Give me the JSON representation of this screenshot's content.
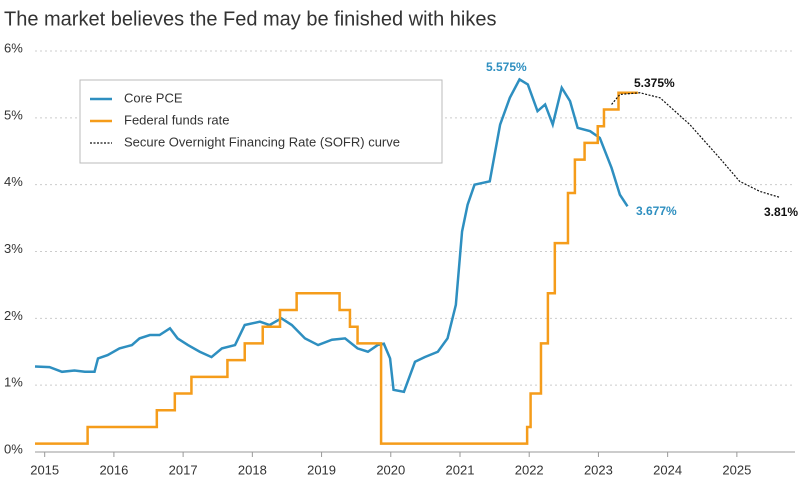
{
  "chart_data": {
    "type": "line",
    "title": "The market believes the Fed may be finished with hikes",
    "xlim": [
      2014.86,
      2025.84
    ],
    "xticks": [
      2015,
      2016,
      2017,
      2018,
      2019,
      2020,
      2021,
      2022,
      2023,
      2024,
      2025
    ],
    "ylim": [
      0,
      6
    ],
    "yticks": [
      {
        "value": 0,
        "label": "0%"
      },
      {
        "value": 1,
        "label": "1%"
      },
      {
        "value": 2,
        "label": "2%"
      },
      {
        "value": 3,
        "label": "3%"
      },
      {
        "value": 4,
        "label": "4%"
      },
      {
        "value": 5,
        "label": "5%"
      },
      {
        "value": 6,
        "label": "6%"
      }
    ],
    "grid": true,
    "legend": "top-left",
    "series": [
      {
        "name": "Core PCE",
        "color": "#2e8fc0",
        "style": "solid",
        "step": false,
        "x": [
          2014.86,
          2015.07,
          2015.25,
          2015.43,
          2015.58,
          2015.72,
          2015.77,
          2015.91,
          2016.08,
          2016.26,
          2016.37,
          2016.52,
          2016.66,
          2016.81,
          2016.92,
          2017.07,
          2017.24,
          2017.41,
          2017.56,
          2017.75,
          2017.89,
          2018.11,
          2018.25,
          2018.42,
          2018.57,
          2018.76,
          2018.95,
          2019.15,
          2019.34,
          2019.52,
          2019.67,
          2019.81,
          2019.9,
          2019.99,
          2020.04,
          2020.19,
          2020.35,
          2020.49,
          2020.68,
          2020.82,
          2020.94,
          2021.03,
          2021.11,
          2021.21,
          2021.43,
          2021.58,
          2021.72,
          2021.86,
          2021.98,
          2022.12,
          2022.23,
          2022.34,
          2022.47,
          2022.59,
          2022.7,
          2022.88,
          2023.02,
          2023.19,
          2023.31,
          2023.42
        ],
        "values": [
          1.28,
          1.27,
          1.2,
          1.22,
          1.2,
          1.2,
          1.4,
          1.45,
          1.55,
          1.6,
          1.7,
          1.75,
          1.75,
          1.85,
          1.7,
          1.6,
          1.5,
          1.42,
          1.55,
          1.6,
          1.9,
          1.95,
          1.9,
          2.0,
          1.9,
          1.7,
          1.6,
          1.68,
          1.7,
          1.55,
          1.5,
          1.6,
          1.62,
          1.4,
          0.93,
          0.9,
          1.35,
          1.42,
          1.5,
          1.7,
          2.2,
          3.3,
          3.7,
          4.0,
          4.05,
          4.9,
          5.3,
          5.575,
          5.5,
          5.1,
          5.2,
          4.9,
          5.45,
          5.25,
          4.85,
          4.8,
          4.7,
          4.25,
          3.85,
          3.677
        ]
      },
      {
        "name": "Federal funds rate",
        "color": "#f59c1a",
        "style": "solid",
        "step": true,
        "x": [
          2014.86,
          2015.62,
          2016.62,
          2016.88,
          2017.12,
          2017.64,
          2017.89,
          2018.15,
          2018.4,
          2018.64,
          2019.26,
          2019.41,
          2019.52,
          2019.86,
          2021.97,
          2022.02,
          2022.17,
          2022.27,
          2022.37,
          2022.56,
          2022.66,
          2022.8,
          2022.99,
          2023.08,
          2023.29,
          2023.57
        ],
        "values": [
          0.125,
          0.375,
          0.625,
          0.875,
          1.125,
          1.375,
          1.625,
          1.875,
          2.125,
          2.375,
          2.125,
          1.875,
          1.625,
          0.125,
          0.375,
          0.875,
          1.625,
          2.375,
          3.125,
          3.875,
          4.375,
          4.625,
          4.875,
          5.125,
          5.375,
          5.375
        ]
      },
      {
        "name": "Secure Overnight Financing Rate (SOFR) curve",
        "color": "#111111",
        "style": "dotted",
        "step": false,
        "x": [
          2023.19,
          2023.31,
          2023.6,
          2023.89,
          2024.32,
          2024.75,
          2025.04,
          2025.33,
          2025.62
        ],
        "values": [
          5.2,
          5.35,
          5.375,
          5.3,
          4.9,
          4.4,
          4.05,
          3.9,
          3.81
        ]
      }
    ],
    "annotations": [
      "5.575%",
      "5.375%",
      "3.677%",
      "3.81%"
    ]
  }
}
